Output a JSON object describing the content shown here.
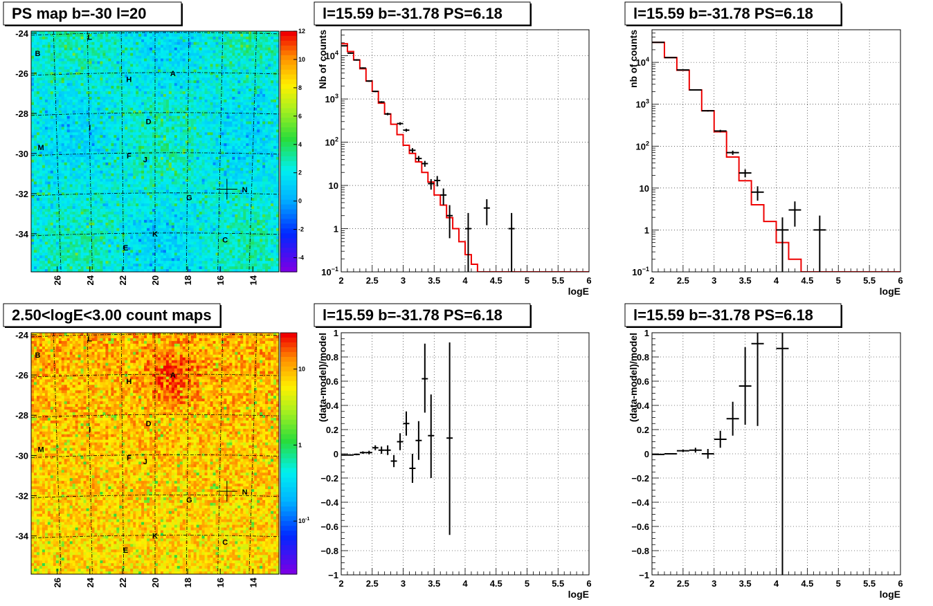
{
  "chart_data": [
    {
      "type": "heatmap",
      "title": "PS map b=-30 l=20",
      "x_ticks": [
        "26",
        "24",
        "22",
        "20",
        "18",
        "16",
        "14"
      ],
      "y_ticks": [
        "-24",
        "-26",
        "-28",
        "-30",
        "-32",
        "-34"
      ],
      "xlim": [
        27.6,
        12.4
      ],
      "ylim": [
        -35.9,
        -23.9
      ],
      "colorbar_ticks": [
        "12",
        "10",
        "8",
        "6",
        "4",
        "2",
        "0",
        "-2",
        "-4"
      ],
      "colorbar_range": [
        -5,
        12
      ],
      "sources": [
        {
          "label": "L",
          "l": 24.0,
          "b": -24.2
        },
        {
          "label": "B",
          "l": 27.2,
          "b": -25.0
        },
        {
          "label": "H",
          "l": 21.6,
          "b": -26.3
        },
        {
          "label": "A",
          "l": 18.9,
          "b": -26.0
        },
        {
          "label": "D",
          "l": 20.4,
          "b": -28.4
        },
        {
          "label": "I",
          "l": 24.0,
          "b": -28.7
        },
        {
          "label": "M",
          "l": 27.0,
          "b": -29.7
        },
        {
          "label": "F",
          "l": 21.6,
          "b": -30.1
        },
        {
          "label": "J",
          "l": 20.6,
          "b": -30.3
        },
        {
          "label": "N",
          "l": 14.5,
          "b": -31.8
        },
        {
          "label": "G",
          "l": 17.9,
          "b": -32.2
        },
        {
          "label": "K",
          "l": 20.0,
          "b": -34.0
        },
        {
          "label": "C",
          "l": 15.7,
          "b": -34.3
        },
        {
          "label": "E",
          "l": 21.8,
          "b": -34.7
        }
      ],
      "marker": {
        "l": 15.59,
        "b": -31.78
      }
    },
    {
      "type": "line",
      "title": "l=15.59 b=-31.78 PS=6.18",
      "xlabel": "logE",
      "ylabel": "Nb of counts",
      "xlim": [
        2,
        6
      ],
      "ylim": [
        0.1,
        40000
      ],
      "y_scale": "log",
      "x_ticks": [
        "2",
        "2.5",
        "3",
        "3.5",
        "4",
        "4.5",
        "5",
        "5.5",
        "6"
      ],
      "y_ticks": [
        {
          "v": 0.1,
          "base": "10",
          "exp": "−1"
        },
        {
          "v": 1,
          "base": "1",
          "exp": ""
        },
        {
          "v": 10,
          "base": "10",
          "exp": ""
        },
        {
          "v": 100,
          "base": "10",
          "exp": "2"
        },
        {
          "v": 1000,
          "base": "10",
          "exp": "3"
        },
        {
          "v": 10000,
          "base": "10",
          "exp": "4"
        }
      ],
      "grid": true,
      "series": [
        {
          "color": "#ee0000",
          "step_edges": [
            2,
            2.1,
            2.2,
            2.3,
            2.4,
            2.5,
            2.6,
            2.7,
            2.8,
            2.9,
            3.0,
            3.1,
            3.2,
            3.3,
            3.4,
            3.5,
            3.6,
            3.7,
            3.8,
            3.9,
            4.0,
            4.1,
            4.2,
            6.0
          ],
          "values": [
            19000,
            12500,
            8000,
            5000,
            2600,
            1500,
            800,
            450,
            260,
            150,
            85,
            55,
            35,
            20,
            12,
            6,
            3.5,
            1.8,
            1.0,
            0.5,
            0.25,
            0.15,
            0.1
          ]
        }
      ],
      "points": [
        {
          "x": 2.05,
          "y": 17000,
          "xerr": 0.05,
          "ylo": 16500,
          "yhi": 17500
        },
        {
          "x": 2.15,
          "y": 11500,
          "xerr": 0.05,
          "ylo": 11100,
          "yhi": 11900
        },
        {
          "x": 2.25,
          "y": 8000,
          "xerr": 0.05,
          "ylo": 7700,
          "yhi": 8300
        },
        {
          "x": 2.35,
          "y": 5200,
          "xerr": 0.05,
          "ylo": 5000,
          "yhi": 5400
        },
        {
          "x": 2.45,
          "y": 2600,
          "xerr": 0.05,
          "ylo": 2500,
          "yhi": 2700
        },
        {
          "x": 2.55,
          "y": 1500,
          "xerr": 0.05,
          "ylo": 1440,
          "yhi": 1560
        },
        {
          "x": 2.65,
          "y": 850,
          "xerr": 0.05,
          "ylo": 810,
          "yhi": 890
        },
        {
          "x": 2.75,
          "y": 450,
          "xerr": 0.05,
          "ylo": 420,
          "yhi": 480
        },
        {
          "x": 2.95,
          "y": 270,
          "xerr": 0.05,
          "ylo": 250,
          "yhi": 290
        },
        {
          "x": 3.05,
          "y": 190,
          "xerr": 0.05,
          "ylo": 175,
          "yhi": 205
        },
        {
          "x": 3.15,
          "y": 65,
          "xerr": 0.05,
          "ylo": 57,
          "yhi": 73
        },
        {
          "x": 3.25,
          "y": 42,
          "xerr": 0.05,
          "ylo": 36,
          "yhi": 48
        },
        {
          "x": 3.35,
          "y": 32,
          "xerr": 0.05,
          "ylo": 27,
          "yhi": 37
        },
        {
          "x": 3.45,
          "y": 11,
          "xerr": 0.05,
          "ylo": 8,
          "yhi": 14
        },
        {
          "x": 3.55,
          "y": 13,
          "xerr": 0.05,
          "ylo": 9.5,
          "yhi": 16.5
        },
        {
          "x": 3.65,
          "y": 6,
          "xerr": 0.05,
          "ylo": 3.5,
          "yhi": 8.5
        },
        {
          "x": 3.75,
          "y": 2,
          "xerr": 0.05,
          "ylo": 0.6,
          "yhi": 3.5
        },
        {
          "x": 4.05,
          "y": 1,
          "xerr": 0.05,
          "ylo": 0.1,
          "yhi": 2.3
        },
        {
          "x": 4.35,
          "y": 3,
          "xerr": 0.05,
          "ylo": 1.2,
          "yhi": 4.8
        },
        {
          "x": 4.75,
          "y": 1,
          "xerr": 0.05,
          "ylo": 0.1,
          "yhi": 2.3
        }
      ]
    },
    {
      "type": "line",
      "title": "l=15.59 b=-31.78 PS=6.18",
      "xlabel": "logE",
      "ylabel": "nb of counts",
      "xlim": [
        2,
        6
      ],
      "ylim": [
        0.1,
        60000
      ],
      "y_scale": "log",
      "x_ticks": [
        "2",
        "2.5",
        "3",
        "3.5",
        "4",
        "4.5",
        "5",
        "5.5",
        "6"
      ],
      "y_ticks": [
        {
          "v": 0.1,
          "base": "10",
          "exp": "−1"
        },
        {
          "v": 1,
          "base": "1",
          "exp": ""
        },
        {
          "v": 10,
          "base": "10",
          "exp": ""
        },
        {
          "v": 100,
          "base": "10",
          "exp": "2"
        },
        {
          "v": 1000,
          "base": "10",
          "exp": "3"
        },
        {
          "v": 10000,
          "base": "10",
          "exp": "4"
        }
      ],
      "grid": true,
      "series": [
        {
          "color": "#ee0000",
          "step_edges": [
            2,
            2.2,
            2.4,
            2.6,
            2.8,
            3.0,
            3.2,
            3.4,
            3.6,
            3.8,
            4.0,
            4.2,
            4.4,
            6.0
          ],
          "values": [
            30000,
            13000,
            6500,
            2200,
            700,
            220,
            55,
            15,
            4,
            1.6,
            0.5,
            0.2,
            0.1
          ]
        }
      ],
      "points": [
        {
          "x": 2.1,
          "y": 30000,
          "xerr": 0.1,
          "ylo": 29700,
          "yhi": 30300
        },
        {
          "x": 2.3,
          "y": 13000,
          "xerr": 0.1,
          "ylo": 12800,
          "yhi": 13200
        },
        {
          "x": 2.5,
          "y": 6600,
          "xerr": 0.1,
          "ylo": 6450,
          "yhi": 6750
        },
        {
          "x": 2.7,
          "y": 2200,
          "xerr": 0.1,
          "ylo": 2130,
          "yhi": 2270
        },
        {
          "x": 2.9,
          "y": 700,
          "xerr": 0.1,
          "ylo": 670,
          "yhi": 730
        },
        {
          "x": 3.1,
          "y": 230,
          "xerr": 0.1,
          "ylo": 215,
          "yhi": 245
        },
        {
          "x": 3.3,
          "y": 70,
          "xerr": 0.1,
          "ylo": 62,
          "yhi": 78
        },
        {
          "x": 3.5,
          "y": 23,
          "xerr": 0.1,
          "ylo": 18,
          "yhi": 28
        },
        {
          "x": 3.7,
          "y": 8,
          "xerr": 0.1,
          "ylo": 5,
          "yhi": 11
        },
        {
          "x": 4.1,
          "y": 1,
          "xerr": 0.1,
          "ylo": 0.1,
          "yhi": 2
        },
        {
          "x": 4.3,
          "y": 3,
          "xerr": 0.1,
          "ylo": 1.2,
          "yhi": 4.8
        },
        {
          "x": 4.7,
          "y": 1,
          "xerr": 0.1,
          "ylo": 0.1,
          "yhi": 2.2
        }
      ]
    },
    {
      "type": "heatmap",
      "title": "2.50<logE<3.00 count maps",
      "x_ticks": [
        "26",
        "24",
        "22",
        "20",
        "18",
        "16",
        "14"
      ],
      "y_ticks": [
        "-24",
        "-26",
        "-28",
        "-30",
        "-32",
        "-34"
      ],
      "xlim": [
        27.6,
        12.4
      ],
      "ylim": [
        -35.9,
        -23.9
      ],
      "colorbar_ticks": [
        {
          "base": "10",
          "exp": ""
        },
        {
          "base": "1",
          "exp": ""
        },
        {
          "base": "10",
          "exp": "-1"
        }
      ],
      "colorbar_scale": "log",
      "colorbar_range": [
        0.02,
        30
      ],
      "sources": [
        {
          "label": "L",
          "l": 24.0,
          "b": -24.2
        },
        {
          "label": "B",
          "l": 27.2,
          "b": -25.0
        },
        {
          "label": "H",
          "l": 21.6,
          "b": -26.3
        },
        {
          "label": "A",
          "l": 18.9,
          "b": -26.0
        },
        {
          "label": "D",
          "l": 20.4,
          "b": -28.4
        },
        {
          "label": "I",
          "l": 24.0,
          "b": -28.7
        },
        {
          "label": "M",
          "l": 27.0,
          "b": -29.7
        },
        {
          "label": "F",
          "l": 21.6,
          "b": -30.1
        },
        {
          "label": "J",
          "l": 20.6,
          "b": -30.3
        },
        {
          "label": "N",
          "l": 14.5,
          "b": -31.8
        },
        {
          "label": "G",
          "l": 17.9,
          "b": -32.2
        },
        {
          "label": "K",
          "l": 20.0,
          "b": -34.0
        },
        {
          "label": "C",
          "l": 15.7,
          "b": -34.3
        },
        {
          "label": "E",
          "l": 21.8,
          "b": -34.7
        }
      ],
      "marker": {
        "l": 15.59,
        "b": -31.78
      }
    },
    {
      "type": "scatter",
      "title": "l=15.59 b=-31.78 PS=6.18",
      "xlabel": "logE",
      "ylabel": "(data-model)/model",
      "xlim": [
        2,
        6
      ],
      "ylim": [
        -1,
        1
      ],
      "x_ticks": [
        "2",
        "2.5",
        "3",
        "3.5",
        "4",
        "4.5",
        "5",
        "5.5",
        "6"
      ],
      "y_ticks": [
        "−1",
        "−0.8",
        "−0.6",
        "−0.4",
        "−0.2",
        "0",
        "0.2",
        "0.4",
        "0.6",
        "0.8",
        "1"
      ],
      "grid": true,
      "points": [
        {
          "x": 2.05,
          "y": -0.01,
          "xerr": 0.05,
          "ylo": -0.015,
          "yhi": -0.005
        },
        {
          "x": 2.15,
          "y": -0.01,
          "xerr": 0.05,
          "ylo": -0.015,
          "yhi": -0.005
        },
        {
          "x": 2.25,
          "y": -0.005,
          "xerr": 0.05,
          "ylo": -0.012,
          "yhi": 0.002
        },
        {
          "x": 2.35,
          "y": 0.01,
          "xerr": 0.05,
          "ylo": 0.0,
          "yhi": 0.02
        },
        {
          "x": 2.45,
          "y": 0.01,
          "xerr": 0.05,
          "ylo": -0.005,
          "yhi": 0.025
        },
        {
          "x": 2.55,
          "y": 0.05,
          "xerr": 0.05,
          "ylo": 0.03,
          "yhi": 0.07
        },
        {
          "x": 2.65,
          "y": 0.03,
          "xerr": 0.05,
          "ylo": 0.0,
          "yhi": 0.06
        },
        {
          "x": 2.75,
          "y": 0.03,
          "xerr": 0.05,
          "ylo": -0.01,
          "yhi": 0.07
        },
        {
          "x": 2.85,
          "y": -0.06,
          "xerr": 0.05,
          "ylo": -0.11,
          "yhi": -0.01
        },
        {
          "x": 2.95,
          "y": 0.1,
          "xerr": 0.05,
          "ylo": 0.03,
          "yhi": 0.17
        },
        {
          "x": 3.05,
          "y": 0.25,
          "xerr": 0.05,
          "ylo": 0.15,
          "yhi": 0.35
        },
        {
          "x": 3.15,
          "y": -0.12,
          "xerr": 0.05,
          "ylo": -0.24,
          "yhi": 0.0
        },
        {
          "x": 3.25,
          "y": 0.11,
          "xerr": 0.05,
          "ylo": -0.05,
          "yhi": 0.27
        },
        {
          "x": 3.35,
          "y": 0.62,
          "xerr": 0.05,
          "ylo": 0.34,
          "yhi": 0.91
        },
        {
          "x": 3.45,
          "y": 0.15,
          "xerr": 0.05,
          "ylo": -0.2,
          "yhi": 0.49
        },
        {
          "x": 3.75,
          "y": 0.13,
          "xerr": 0.05,
          "ylo": -0.67,
          "yhi": 0.92
        }
      ]
    },
    {
      "type": "scatter",
      "title": "l=15.59 b=-31.78 PS=6.18",
      "xlabel": "logE",
      "ylabel": "(data-model)/model",
      "xlim": [
        2,
        6
      ],
      "ylim": [
        -1,
        1
      ],
      "x_ticks": [
        "2",
        "2.5",
        "3",
        "3.5",
        "4",
        "4.5",
        "5",
        "5.5",
        "6"
      ],
      "y_ticks": [
        "−1",
        "−0.8",
        "−0.6",
        "−0.4",
        "−0.2",
        "0",
        "0.2",
        "0.4",
        "0.6",
        "0.8",
        "1"
      ],
      "grid": true,
      "points": [
        {
          "x": 2.1,
          "y": -0.005,
          "xerr": 0.1,
          "ylo": -0.01,
          "yhi": 0.0
        },
        {
          "x": 2.3,
          "y": 0.0,
          "xerr": 0.1,
          "ylo": -0.005,
          "yhi": 0.005
        },
        {
          "x": 2.5,
          "y": 0.025,
          "xerr": 0.1,
          "ylo": 0.015,
          "yhi": 0.035
        },
        {
          "x": 2.7,
          "y": 0.03,
          "xerr": 0.1,
          "ylo": 0.01,
          "yhi": 0.05
        },
        {
          "x": 2.9,
          "y": 0.0,
          "xerr": 0.1,
          "ylo": -0.04,
          "yhi": 0.04
        },
        {
          "x": 3.1,
          "y": 0.12,
          "xerr": 0.1,
          "ylo": 0.05,
          "yhi": 0.19
        },
        {
          "x": 3.3,
          "y": 0.29,
          "xerr": 0.1,
          "ylo": 0.15,
          "yhi": 0.43
        },
        {
          "x": 3.5,
          "y": 0.56,
          "xerr": 0.1,
          "ylo": 0.24,
          "yhi": 0.88
        },
        {
          "x": 3.7,
          "y": 0.91,
          "xerr": 0.1,
          "ylo": 0.23,
          "yhi": 1.0
        },
        {
          "x": 4.1,
          "y": 0.87,
          "xerr": 0.1,
          "ylo": -1.0,
          "yhi": 1.0
        }
      ]
    }
  ]
}
